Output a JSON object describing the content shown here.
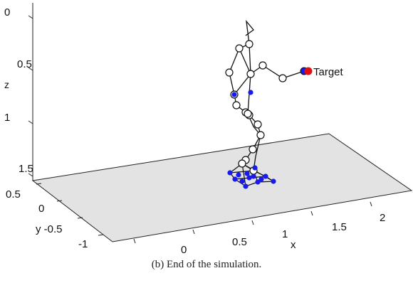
{
  "figure": {
    "caption": "(b) End of the simulation.",
    "target_label": "Target"
  },
  "chart_data": {
    "type": "scatter",
    "title": "",
    "xlabel": "x",
    "ylabel": "y",
    "zlabel": "z",
    "x_ticks": [
      "0",
      "0.5",
      "1",
      "1.5",
      "2"
    ],
    "y_ticks": [
      "0.5",
      "0",
      "y -0.5",
      "-1"
    ],
    "z_ticks": [
      "0",
      "0.5",
      "1",
      "1.5"
    ],
    "grid": false,
    "colors": {
      "joint": "#000000",
      "contact": "#1a1aee",
      "target": "#e01010",
      "ground": "#e3e3e3"
    }
  }
}
